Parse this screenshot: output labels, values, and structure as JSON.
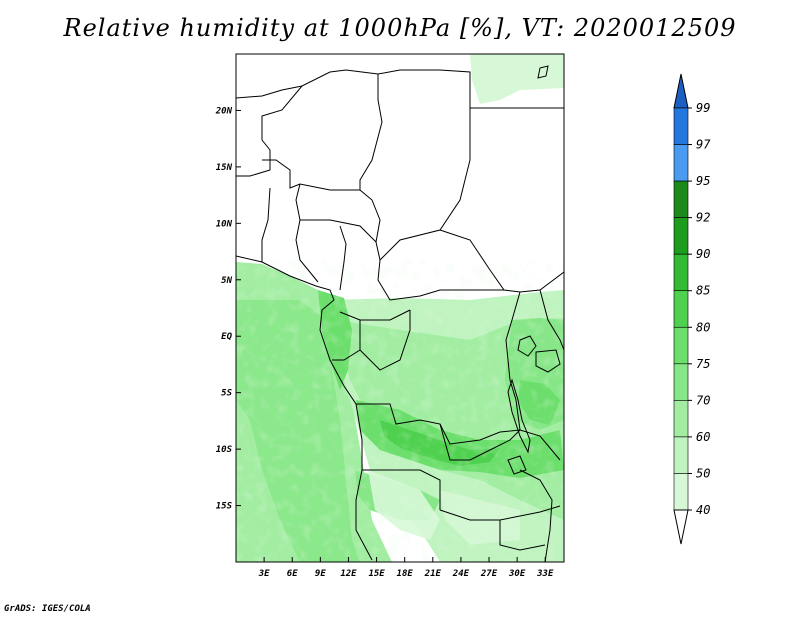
{
  "title": "Relative humidity at 1000hPa [%], VT: 2020012509",
  "credit": "GrADS: IGES/COLA",
  "map": {
    "lat_ticks": [
      {
        "lat": 20,
        "label": "20N"
      },
      {
        "lat": 15,
        "label": "15N"
      },
      {
        "lat": 10,
        "label": "10N"
      },
      {
        "lat": 5,
        "label": "5N"
      },
      {
        "lat": 0,
        "label": "EQ"
      },
      {
        "lat": -5,
        "label": "5S"
      },
      {
        "lat": -10,
        "label": "10S"
      },
      {
        "lat": -15,
        "label": "15S"
      }
    ],
    "lon_ticks": [
      {
        "lon": 3,
        "label": "3E"
      },
      {
        "lon": 6,
        "label": "6E"
      },
      {
        "lon": 9,
        "label": "9E"
      },
      {
        "lon": 12,
        "label": "12E"
      },
      {
        "lon": 15,
        "label": "15E"
      },
      {
        "lon": 18,
        "label": "18E"
      },
      {
        "lon": 21,
        "label": "21E"
      },
      {
        "lon": 24,
        "label": "24E"
      },
      {
        "lon": 27,
        "label": "27E"
      },
      {
        "lon": 30,
        "label": "30E"
      },
      {
        "lon": 33,
        "label": "33E"
      }
    ],
    "lon_range": [
      0,
      35
    ],
    "lat_range": [
      -20,
      25
    ]
  },
  "colorbar": {
    "levels": [
      {
        "label": "40",
        "color": "#f0fff0"
      },
      {
        "label": "50",
        "color": "#d7f8d7"
      },
      {
        "label": "60",
        "color": "#bff3bf"
      },
      {
        "label": "70",
        "color": "#a2eda2"
      },
      {
        "label": "75",
        "color": "#87e687"
      },
      {
        "label": "80",
        "color": "#6cde6c"
      },
      {
        "label": "85",
        "color": "#4fd14f"
      },
      {
        "label": "90",
        "color": "#33bb33"
      },
      {
        "label": "92",
        "color": "#1e9c1e"
      },
      {
        "label": "95",
        "color": "#1b8a1b"
      },
      {
        "label": "97",
        "color": "#4a9bf0"
      },
      {
        "label": "99",
        "color": "#2577e0"
      }
    ],
    "top_color": "#1c5fc4",
    "bottom_color": "#ffffff"
  }
}
